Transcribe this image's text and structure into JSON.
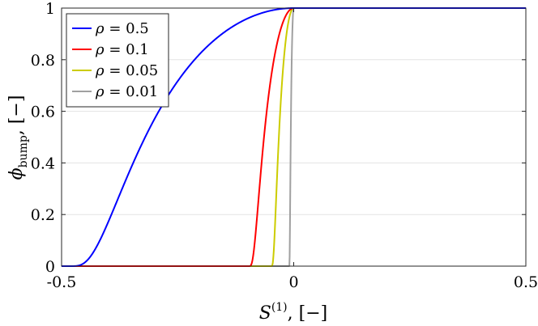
{
  "chart_data": {
    "type": "line",
    "xlabel": {
      "symbol": "S",
      "sup": "(1)",
      "rest": ", [−]"
    },
    "ylabel": {
      "symbol": "ϕ",
      "sub": "bump",
      "rest": ", [−]"
    },
    "xlim": [
      -0.5,
      0.5
    ],
    "ylim": [
      0,
      1
    ],
    "xticks": [
      -0.5,
      0,
      0.5
    ],
    "xtick_labels": [
      "-0.5",
      "0",
      "0.5"
    ],
    "yticks": [
      0,
      0.2,
      0.4,
      0.6,
      0.8,
      1
    ],
    "ytick_labels": [
      "0",
      "0.2",
      "0.4",
      "0.6",
      "0.8",
      "1"
    ],
    "grid": "horizontal",
    "legend_position": "top-left",
    "function": "phi = 1 for S >= 0; phi = exp(1 - 1/(1 - (S/rho)^2)) for -rho < S < 0; phi = 0 for S <= -rho",
    "series": [
      {
        "name": "ρ = 0.5",
        "symbol": "ρ",
        "value_label": "= 0.5",
        "rho": 0.5,
        "color": "#0000ff"
      },
      {
        "name": "ρ = 0.1",
        "symbol": "ρ",
        "value_label": "= 0.1",
        "rho": 0.1,
        "color": "#ff0000"
      },
      {
        "name": "ρ = 0.05",
        "symbol": "ρ",
        "value_label": "= 0.05",
        "rho": 0.05,
        "color": "#cccc00"
      },
      {
        "name": "ρ = 0.01",
        "symbol": "ρ",
        "value_label": "= 0.01",
        "rho": 0.01,
        "color": "#a0a0a0"
      }
    ]
  }
}
